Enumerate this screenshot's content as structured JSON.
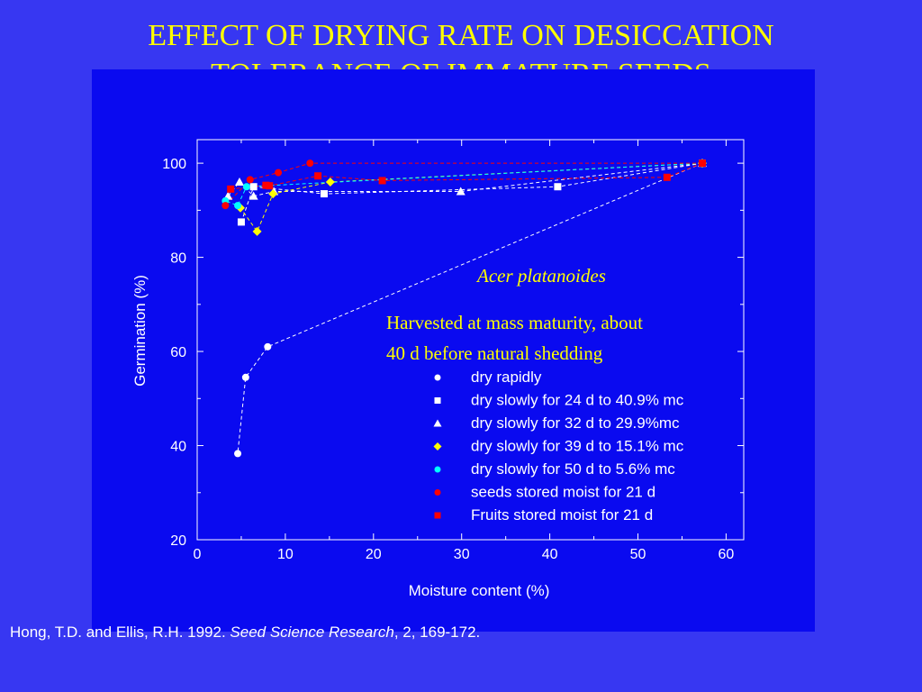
{
  "title": {
    "line1": "EFFECT OF DRYING RATE ON DESICCATION",
    "line2": "TOLERANCE OF IMMATURE SEEDS"
  },
  "citation": {
    "authors": "Hong, T.D. and Ellis, R.H. 1992. ",
    "journal": "Seed Science Research",
    "rest": ", 2, 169-172."
  },
  "colors": {
    "background": "#3737f2",
    "panel": "#0a0af0",
    "title": "#ffff00",
    "white": "#ffffff",
    "yellow": "#ffff00",
    "cyan": "#00ffff",
    "red": "#ff0000"
  },
  "chart_data": {
    "type": "scatter",
    "xlabel": "Moisture content (%)",
    "ylabel": "Germination (%)",
    "xlim": [
      0,
      62
    ],
    "ylim": [
      20,
      105
    ],
    "xticks": [
      0,
      10,
      20,
      30,
      40,
      50,
      60
    ],
    "yticks": [
      20,
      40,
      60,
      80,
      100
    ],
    "grid": false,
    "annotations": {
      "species": "Acer platanoides",
      "note_line1": "Harvested at mass maturity, about",
      "note_line2": "40 d before natural shedding"
    },
    "legend_placement": "lower-right",
    "series": [
      {
        "name": "dry rapidly",
        "marker": "circle",
        "color": "#ffffff",
        "x": [
          57.3,
          8.0,
          5.5,
          4.6
        ],
        "y": [
          100,
          61,
          54.5,
          38.3
        ]
      },
      {
        "name": "dry slowly for 24 d to 40.9% mc",
        "marker": "square",
        "color": "#ffffff",
        "x": [
          57.3,
          40.9,
          14.4,
          6.4,
          5.0
        ],
        "y": [
          100,
          95,
          93.5,
          95,
          87.5
        ]
      },
      {
        "name": "dry slowly for 32 d to 29.9%mc",
        "marker": "triangle",
        "color": "#ffffff",
        "x": [
          57.3,
          29.9,
          8.7,
          6.4,
          4.8,
          3.5
        ],
        "y": [
          100,
          94,
          94,
          93,
          96,
          93
        ]
      },
      {
        "name": "dry slowly for 39 d to 15.1% mc",
        "marker": "diamond",
        "color": "#ffff00",
        "x": [
          57.3,
          15.1,
          8.6,
          6.8,
          4.9
        ],
        "y": [
          100,
          96,
          93.5,
          85.5,
          90.5
        ]
      },
      {
        "name": "dry slowly for 50 d to 5.6% mc",
        "marker": "circle",
        "color": "#00ffff",
        "x": [
          57.3,
          5.6,
          4.6,
          3.2
        ],
        "y": [
          100,
          95,
          91,
          92
        ]
      },
      {
        "name": "seeds stored moist for 21 d",
        "marker": "circle",
        "color": "#ff0000",
        "x": [
          57.3,
          12.8,
          9.2,
          6.0,
          3.2
        ],
        "y": [
          100,
          100,
          98,
          96.5,
          91
        ]
      },
      {
        "name": "Fruits stored moist for 21 d",
        "marker": "square",
        "color": "#ff0000",
        "x": [
          57.3,
          53.3,
          21.0,
          13.7,
          8.2,
          7.8,
          3.8
        ],
        "y": [
          100,
          97,
          96.3,
          97.3,
          95.2,
          95.3,
          94.5
        ]
      }
    ]
  }
}
